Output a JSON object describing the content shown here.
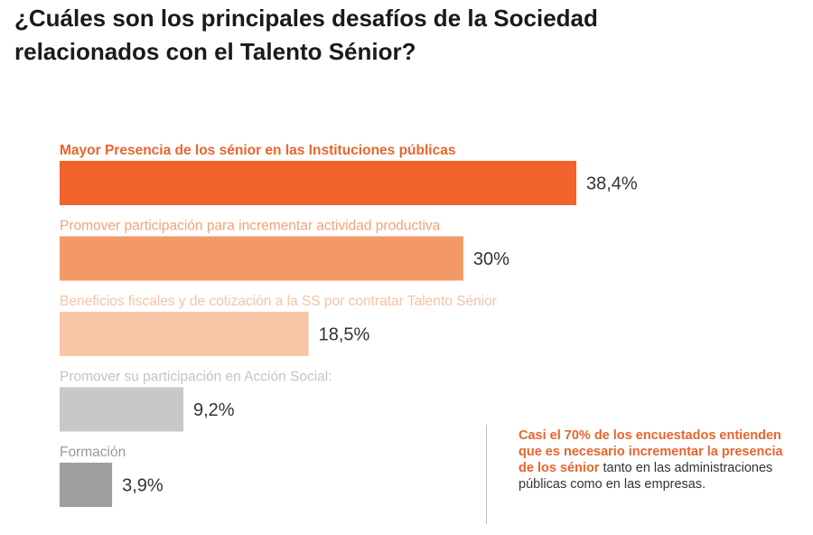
{
  "title": {
    "line1": "¿Cuáles son los principales desafíos de la Sociedad",
    "line2": "relacionados con el Talento Sénior?"
  },
  "chart_data": {
    "type": "bar",
    "orientation": "horizontal",
    "categories": [
      "Mayor Presencia de los sénior en las Instituciones públicas",
      "Promover participación para incrementar actividad productiva",
      "Beneficios fiscales y de cotización a la SS por contratar Talento Sénior",
      "Promover su participación en Acción Social:",
      "Formación"
    ],
    "values": [
      38.4,
      30,
      18.5,
      9.2,
      3.9
    ],
    "value_labels": [
      "38,4%",
      "30%",
      "18,5%",
      "9,2%",
      "3,9%"
    ],
    "unit": "%",
    "bar_colors": [
      "#f2622b",
      "#f49868",
      "#f8c6a6",
      "#c8c8c8",
      "#9e9e9e"
    ],
    "label_colors": [
      "#e8652d",
      "#f1a37a",
      "#f6c3a3",
      "#c4c4c4",
      "#9a9a9a"
    ],
    "value_label_color": "#333333",
    "grid": false,
    "legend": "none"
  },
  "callout": {
    "highlight": "Casi el 70% de los encuestados entienden que es necesario incrementar la presencia de los sénior",
    "text": " tanto en las administraciones públicas como en las empresas.",
    "highlight_color": "#e8652d"
  }
}
